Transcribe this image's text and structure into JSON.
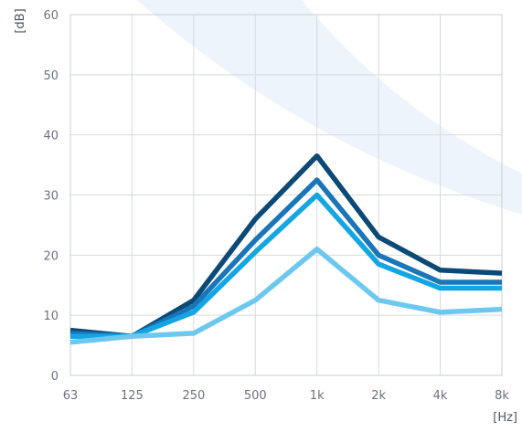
{
  "chart_data": {
    "type": "line",
    "categories": [
      "63",
      "125",
      "250",
      "500",
      "1k",
      "2k",
      "4k",
      "8k"
    ],
    "ylim": [
      0,
      60
    ],
    "yticks": [
      "0",
      "10",
      "20",
      "30",
      "40",
      "50",
      "60"
    ],
    "ylabel": "[dB]",
    "xlabel": "[Hz]",
    "grid": true,
    "series": [
      {
        "color": "#0b4a76",
        "values": [
          7.5,
          6.5,
          12.5,
          26,
          36.5,
          23,
          17.5,
          17
        ]
      },
      {
        "color": "#1a75b9",
        "values": [
          7,
          6.5,
          11.5,
          22.5,
          32.5,
          20,
          15.5,
          15.5
        ]
      },
      {
        "color": "#13a6e3",
        "values": [
          6.5,
          6.5,
          10.5,
          20.5,
          30,
          18.5,
          14.5,
          14.5
        ]
      },
      {
        "color": "#6cc8ee",
        "values": [
          5.5,
          6.5,
          7,
          12.5,
          21,
          12.5,
          10.5,
          11
        ]
      }
    ]
  },
  "decoration": {
    "swoosh_color": "#eef4fb"
  }
}
